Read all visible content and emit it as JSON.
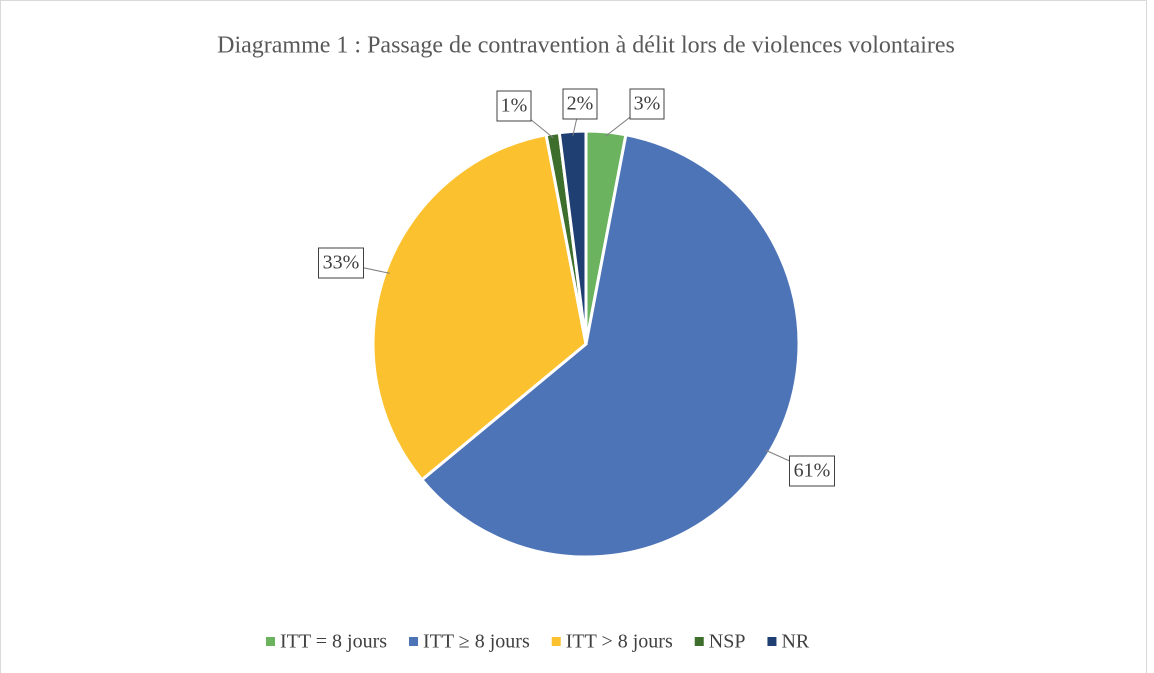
{
  "chart_data": {
    "type": "pie",
    "title": "Diagramme 1 : Passage de contravention à délit lors de violences volontaires",
    "categories": [
      "ITT = 8 jours",
      "ITT ≥ 8 jours",
      "ITT > 8 jours",
      "NSP",
      "NR"
    ],
    "values": [
      3,
      61,
      33,
      1,
      2
    ],
    "value_labels": [
      "3%",
      "61%",
      "33%",
      "1%",
      "2%"
    ],
    "colors": [
      "#6cb35f",
      "#4e74b8",
      "#fbc12f",
      "#3e6e2c",
      "#1f3f73"
    ],
    "legend": "bottom"
  }
}
